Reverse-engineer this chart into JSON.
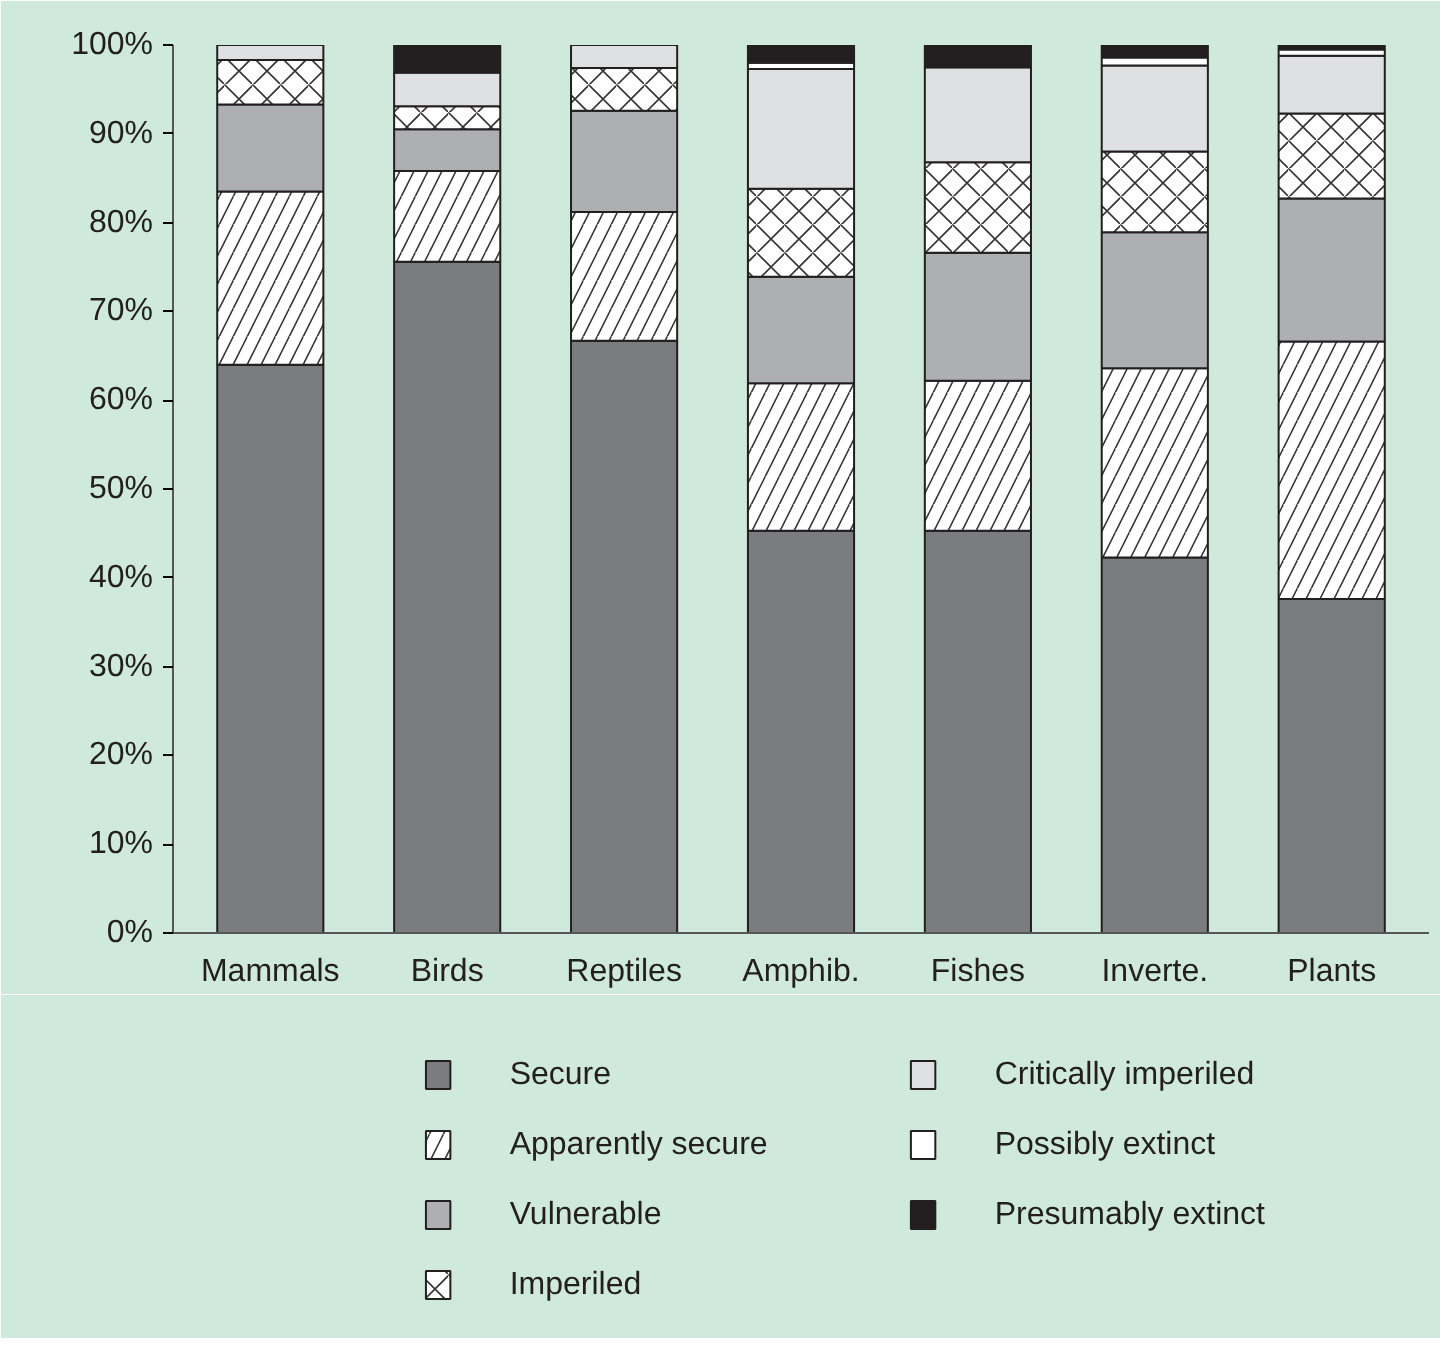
{
  "chart_data": {
    "type": "bar",
    "stacked": true,
    "categories": [
      "Mammals",
      "Birds",
      "Reptiles",
      "Amphib.",
      "Fishes",
      "Inverte.",
      "Plants"
    ],
    "series": [
      {
        "name": "Secure",
        "color": "#7b7c80",
        "values": [
          64,
          75.6,
          66.7,
          45.3,
          45.3,
          42.3,
          37.6
        ]
      },
      {
        "name": "Apparently secure",
        "color": "#ffffff",
        "values": [
          19.5,
          10.2,
          14.5,
          16.6,
          16.9,
          21.3,
          29
        ]
      },
      {
        "name": "Vulnerable",
        "color": "#aeafb3",
        "values": [
          9.8,
          4.7,
          11.4,
          12,
          14.4,
          15.3,
          16.1
        ]
      },
      {
        "name": "Imperiled",
        "color": "#ffffff",
        "values": [
          5,
          2.6,
          4.8,
          9.9,
          10.2,
          9.1,
          9.6
        ]
      },
      {
        "name": "Critically imperiled",
        "color": "#dfe0e2",
        "values": [
          1.7,
          3.8,
          2.6,
          13.5,
          10.7,
          9.7,
          6.5
        ]
      },
      {
        "name": "Possibly extinct",
        "color": "#ffffff",
        "values": [
          0,
          0,
          0,
          0.7,
          0,
          0.9,
          0.7
        ]
      },
      {
        "name": "Presumably extinct",
        "color": "#231f20",
        "values": [
          0,
          3.1,
          0,
          2,
          2.5,
          1.4,
          0.5
        ]
      }
    ],
    "ylim": [
      0,
      100
    ],
    "yticks": [
      {
        "value": 0,
        "label": "0%"
      },
      {
        "value": 10,
        "label": "10%"
      },
      {
        "value": 20,
        "label": "20%"
      },
      {
        "value": 30,
        "label": "30%"
      },
      {
        "value": 40,
        "label": "40%"
      },
      {
        "value": 50,
        "label": "50%"
      },
      {
        "value": 60,
        "label": "60%"
      },
      {
        "value": 70,
        "label": "70%"
      },
      {
        "value": 80,
        "label": "80%"
      },
      {
        "value": 90,
        "label": "90%"
      },
      {
        "value": 100,
        "label": "100%"
      }
    ],
    "grid": false,
    "legend": "bottom"
  }
}
